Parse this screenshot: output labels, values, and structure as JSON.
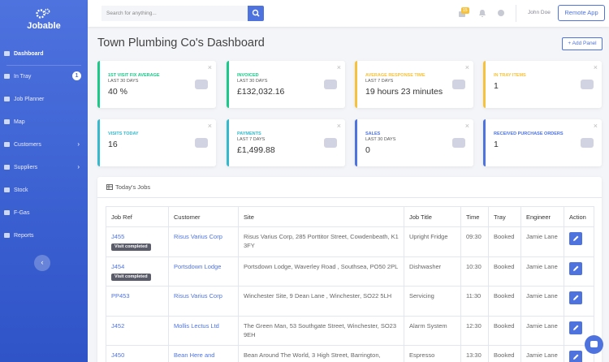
{
  "sidebar": {
    "brand": "Jobable",
    "nav": [
      {
        "label": "Dashboard"
      },
      {
        "label": "In Tray",
        "badge": "1"
      },
      {
        "label": "Job Planner"
      },
      {
        "label": "Map"
      },
      {
        "label": "Customers"
      },
      {
        "label": "Suppliers"
      },
      {
        "label": "Stock"
      },
      {
        "label": "F-Gas"
      },
      {
        "label": "Reports"
      }
    ]
  },
  "topbar": {
    "search_placeholder": "Search for anything...",
    "notification_count": "15",
    "user_name": "John Doe",
    "remote_button": "Remote App"
  },
  "page": {
    "title": "Town Plumbing Co's Dashboard",
    "add_panel": "+ Add Panel"
  },
  "cards": [
    {
      "label": "1st Visit Fix Average",
      "period": "Last 30 Days",
      "value": "40 %"
    },
    {
      "label": "Invoiced",
      "period": "Last 30 Days",
      "value": "£132,032.16"
    },
    {
      "label": "Average Response Time",
      "period": "Last 7 Days",
      "value": "19 hours 23 minutes"
    },
    {
      "label": "In Tray Items",
      "value": "1"
    },
    {
      "label": "Visits Today",
      "value": "16"
    },
    {
      "label": "Payments",
      "period": "Last 7 Days",
      "value": "£1,499.88"
    },
    {
      "label": "Sales",
      "period": "Last 30 Days",
      "value": "0"
    },
    {
      "label": "Received Purchase Orders",
      "value": "1"
    }
  ],
  "jobs": {
    "title": "Today's Jobs",
    "columns": [
      "Job Ref",
      "Customer",
      "Site",
      "Job Title",
      "Time",
      "Tray",
      "Engineer",
      "Action"
    ],
    "rows": [
      {
        "job_ref": "J455",
        "status": "Visit completed",
        "customer": "Risus Varius Corp",
        "site": "Risus Varius Corp, 285 Porttitor Street, Cowdenbeath, K1 3FY",
        "job_title": "Upright Fridge",
        "time": "09:30",
        "tray": "Booked",
        "engineer": "Jamie Lane"
      },
      {
        "job_ref": "J454",
        "status": "Visit completed",
        "customer": "Portsdown Lodge",
        "site": "Portsdown Lodge, Waverley Road , Southsea, PO50 2PL",
        "job_title": "Dishwasher",
        "time": "10:30",
        "tray": "Booked",
        "engineer": "Jamie Lane"
      },
      {
        "job_ref": "PP453",
        "customer": "Risus Varius Corp",
        "site": "Winchester Site, 9 Dean Lane , Winchester, SO22 5LH",
        "job_title": "Servicing",
        "time": "11:30",
        "tray": "Booked",
        "engineer": "Jamie Lane"
      },
      {
        "job_ref": "J452",
        "customer": "Mollis Lectus Ltd",
        "site": "The Green Man, 53 Southgate Street, Winchester, SO23 9EH",
        "job_title": "Alarm System",
        "time": "12:30",
        "tray": "Booked",
        "engineer": "Jamie Lane"
      },
      {
        "job_ref": "J450",
        "customer": "Bean Here and",
        "site": "Bean Around The World, 3 High Street, Barrington,",
        "job_title": "Espresso",
        "time": "13:30",
        "tray": "Booked",
        "engineer": "Jamie Lane"
      }
    ]
  }
}
